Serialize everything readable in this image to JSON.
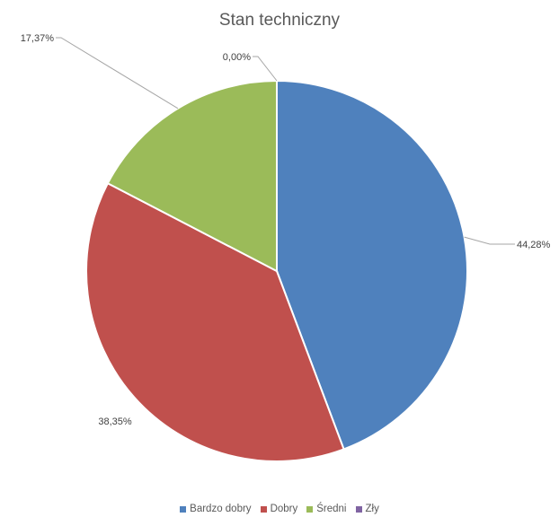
{
  "chart_data": {
    "type": "pie",
    "title": "Stan techniczny",
    "categories": [
      "Bardzo dobry",
      "Dobry",
      "Średni",
      "Zły"
    ],
    "values": [
      44.28,
      38.35,
      17.37,
      0.0
    ],
    "labels": [
      "44,28%",
      "38,35%",
      "17,37%",
      "0,00%"
    ],
    "colors": [
      "#4F81BD",
      "#C0504D",
      "#9BBB59",
      "#8064A2"
    ],
    "legend_position": "bottom",
    "start_angle": "12 o'clock, clockwise"
  }
}
